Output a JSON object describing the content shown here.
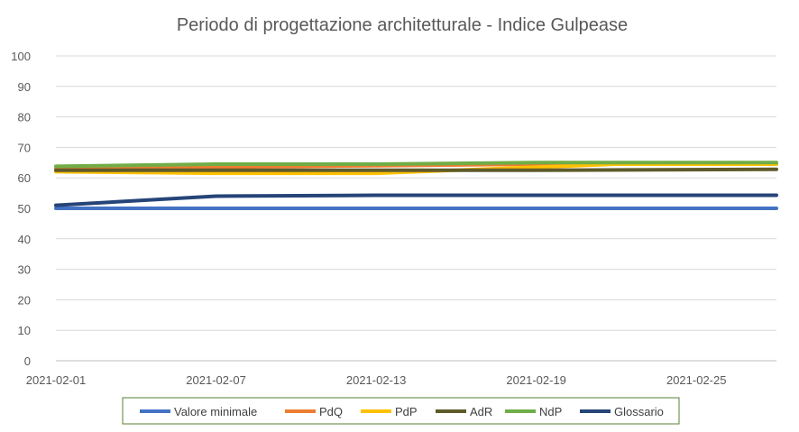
{
  "chart_data": {
    "type": "line",
    "title": "Periodo di progettazione architetturale - Indice Gulpease",
    "xlabel": "",
    "ylabel": "",
    "x_start": "2021-02-01",
    "x_end": "2021-02-28",
    "x_ticks": [
      "2021-02-01",
      "2021-02-07",
      "2021-02-13",
      "2021-02-19",
      "2021-02-25"
    ],
    "ylim": [
      0,
      100
    ],
    "y_ticks": [
      0,
      10,
      20,
      30,
      40,
      50,
      60,
      70,
      80,
      90,
      100
    ],
    "grid": true,
    "legend_position": "bottom",
    "series": [
      {
        "name": "Valore minimale",
        "color": "#4472c4",
        "points": [
          [
            "2021-02-01",
            50
          ],
          [
            "2021-02-28",
            50
          ]
        ]
      },
      {
        "name": "PdQ",
        "color": "#ed7d31",
        "points": [
          [
            "2021-02-01",
            63
          ],
          [
            "2021-02-07",
            63.5
          ],
          [
            "2021-02-13",
            64
          ],
          [
            "2021-02-19",
            64.5
          ],
          [
            "2021-02-28",
            64.5
          ]
        ]
      },
      {
        "name": "PdP",
        "color": "#ffc000",
        "points": [
          [
            "2021-02-01",
            62
          ],
          [
            "2021-02-07",
            61.5
          ],
          [
            "2021-02-13",
            61.5
          ],
          [
            "2021-02-19",
            63.5
          ],
          [
            "2021-02-22",
            64.5
          ],
          [
            "2021-02-28",
            64.5
          ]
        ]
      },
      {
        "name": "AdR",
        "color": "#5e5a2a",
        "points": [
          [
            "2021-02-01",
            62.5
          ],
          [
            "2021-02-07",
            62.5
          ],
          [
            "2021-02-13",
            62.5
          ],
          [
            "2021-02-19",
            62.5
          ],
          [
            "2021-02-28",
            62.8
          ]
        ]
      },
      {
        "name": "NdP",
        "color": "#70ad47",
        "points": [
          [
            "2021-02-01",
            63.8
          ],
          [
            "2021-02-07",
            64.5
          ],
          [
            "2021-02-13",
            64.5
          ],
          [
            "2021-02-19",
            65
          ],
          [
            "2021-02-28",
            65
          ]
        ]
      },
      {
        "name": "Glossario",
        "color": "#264478",
        "points": [
          [
            "2021-02-01",
            51
          ],
          [
            "2021-02-07",
            54
          ],
          [
            "2021-02-13",
            54.3
          ],
          [
            "2021-02-19",
            54.3
          ],
          [
            "2021-02-28",
            54.3
          ]
        ]
      }
    ]
  }
}
